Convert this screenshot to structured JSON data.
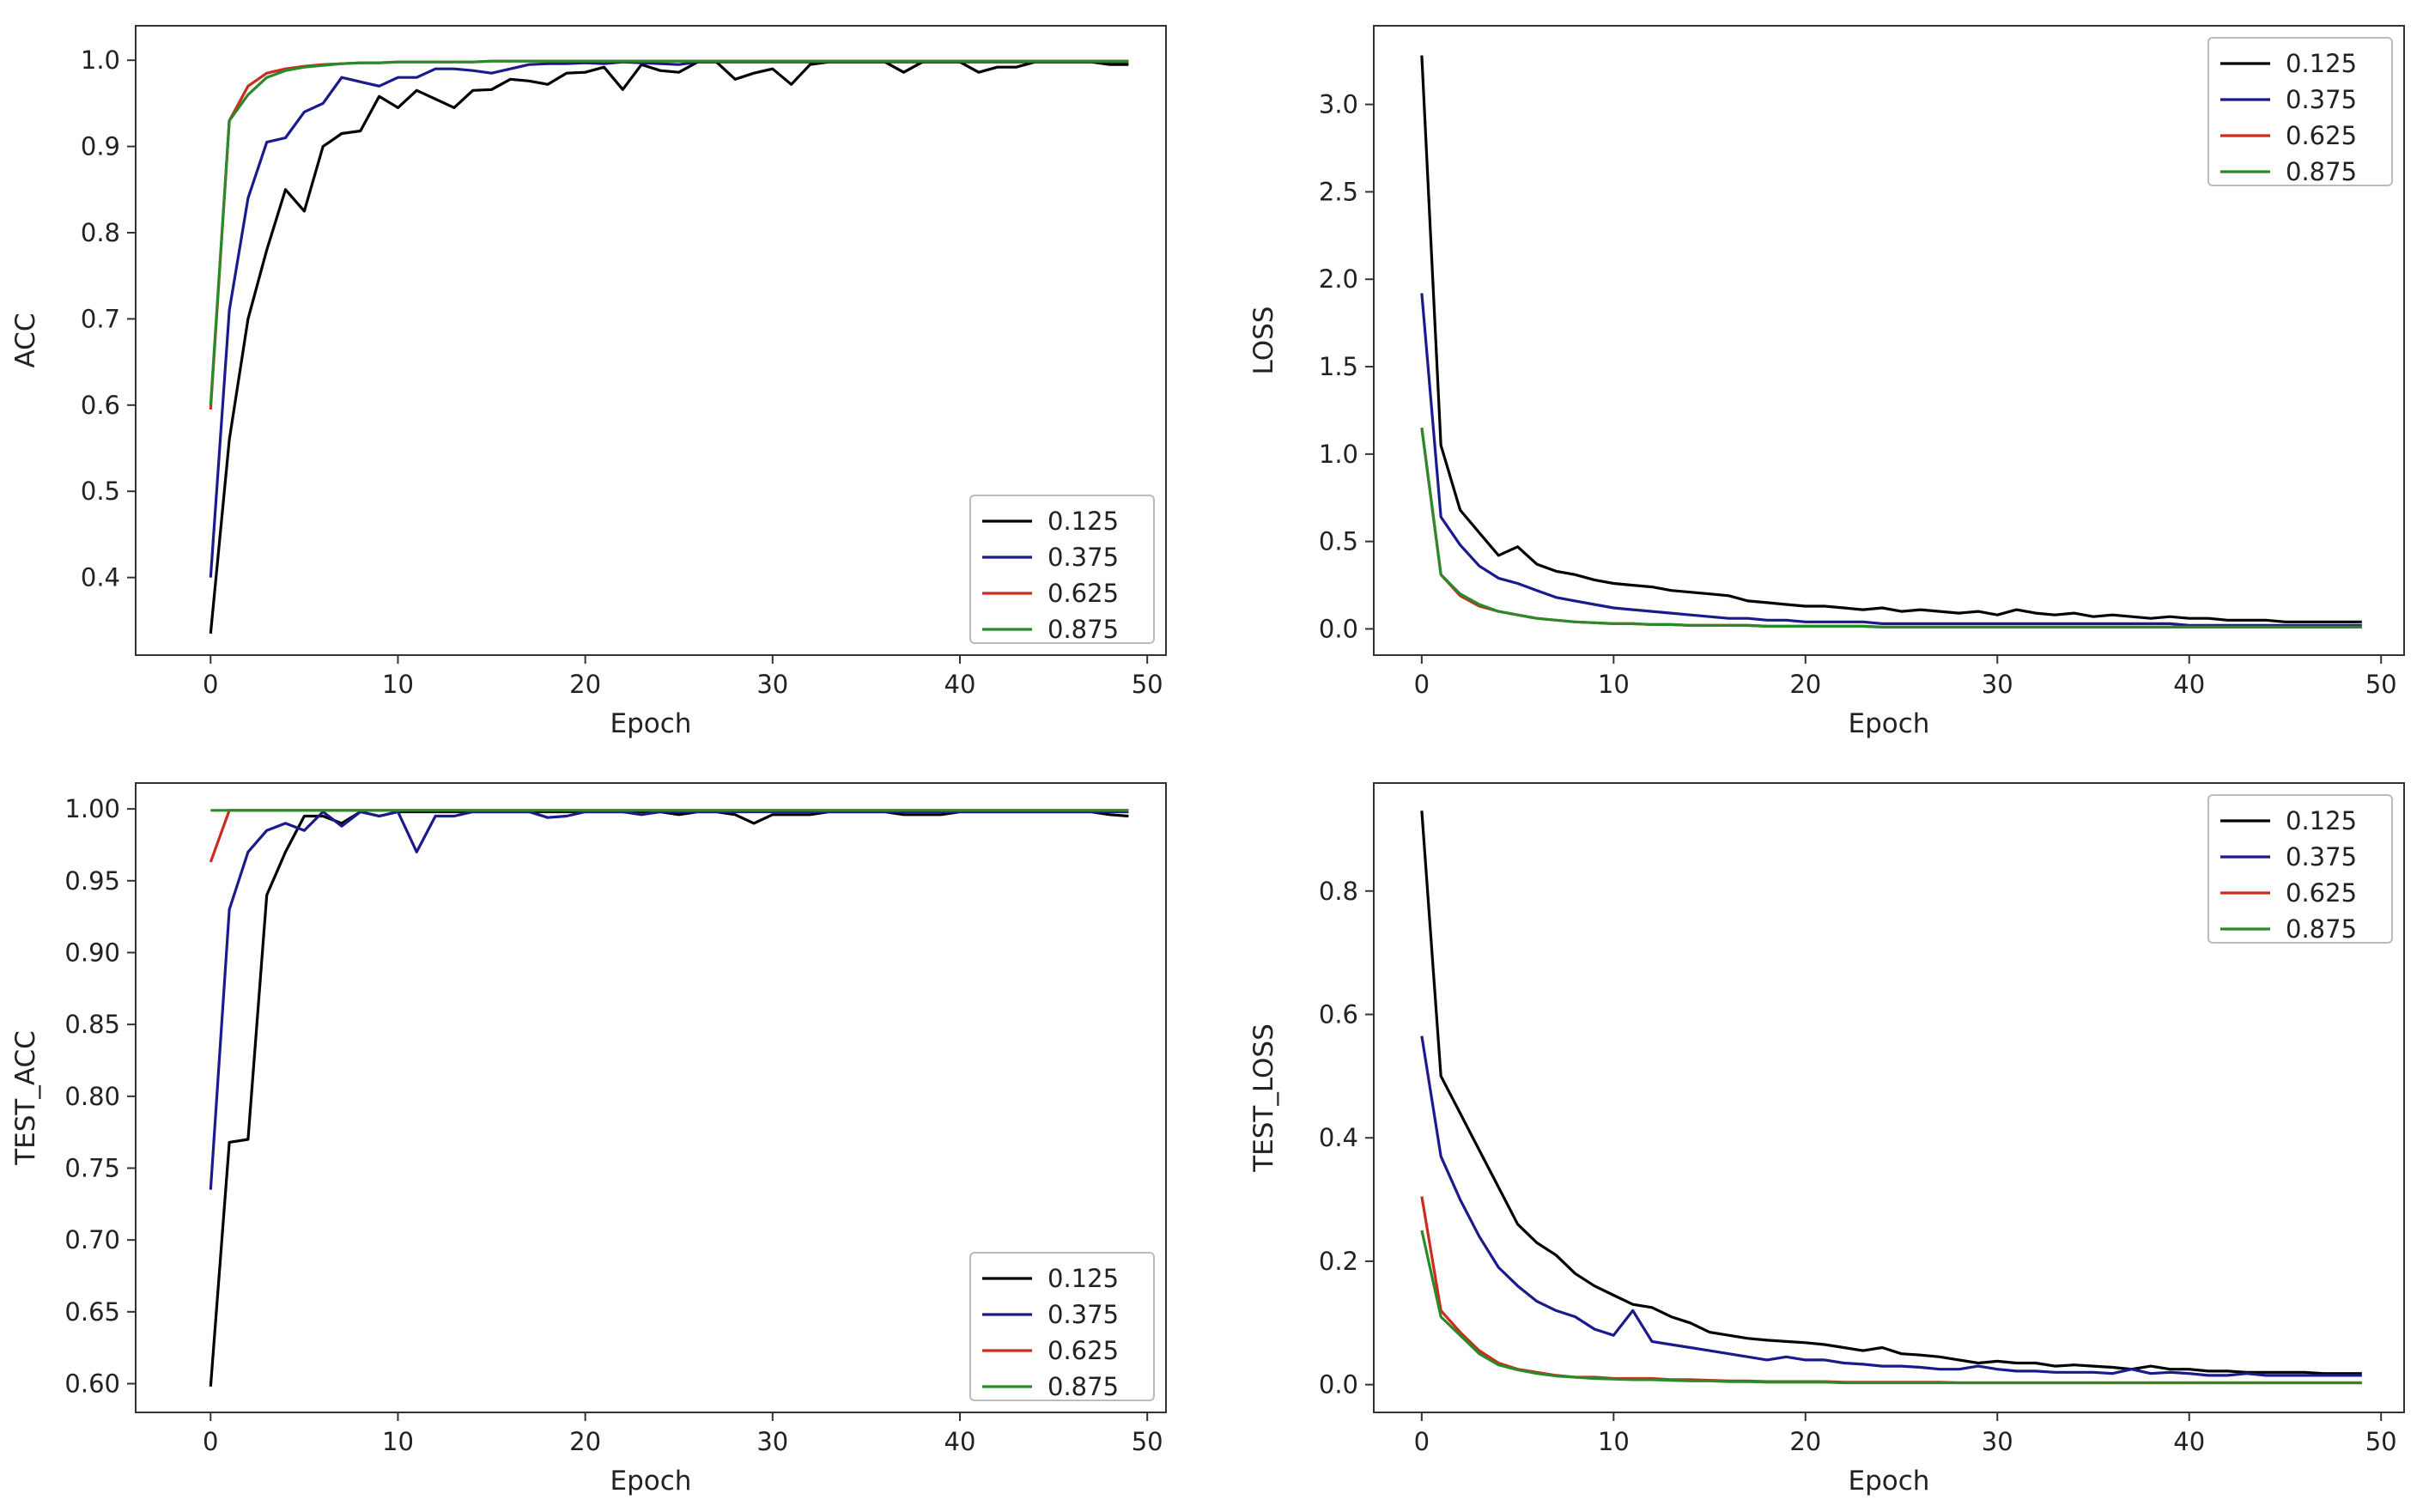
{
  "chart_data": [
    {
      "type": "line",
      "id": "acc",
      "xlabel": "Epoch",
      "ylabel": "ACC",
      "xlim": [
        -4,
        51
      ],
      "ylim": [
        0.31,
        1.04
      ],
      "xticks": [
        0,
        10,
        20,
        30,
        40,
        50
      ],
      "yticks": [
        0.4,
        0.5,
        0.6,
        0.7,
        0.8,
        0.9,
        1.0
      ],
      "ytick_labels": [
        "0.4",
        "0.5",
        "0.6",
        "0.7",
        "0.8",
        "0.9",
        "1.0"
      ],
      "legend_position": "lower-right",
      "series": [
        {
          "name": "0.125",
          "color": "#000000",
          "values": [
            0.335,
            0.56,
            0.7,
            0.78,
            0.85,
            0.825,
            0.9,
            0.915,
            0.918,
            0.958,
            0.945,
            0.965,
            0.955,
            0.945,
            0.965,
            0.966,
            0.978,
            0.976,
            0.972,
            0.985,
            0.986,
            0.992,
            0.966,
            0.995,
            0.988,
            0.986,
            0.998,
            0.998,
            0.978,
            0.985,
            0.99,
            0.972,
            0.995,
            0.998,
            0.998,
            0.998,
            0.998,
            0.986,
            0.998,
            0.998,
            0.998,
            0.986,
            0.992,
            0.992,
            0.998,
            0.998,
            0.998,
            0.998,
            0.995,
            0.995
          ]
        },
        {
          "name": "0.375",
          "color": "#1a1a8c",
          "values": [
            0.4,
            0.71,
            0.84,
            0.905,
            0.91,
            0.94,
            0.95,
            0.98,
            0.975,
            0.97,
            0.98,
            0.98,
            0.99,
            0.99,
            0.988,
            0.985,
            0.99,
            0.995,
            0.996,
            0.996,
            0.997,
            0.996,
            0.998,
            0.997,
            0.996,
            0.995,
            0.998,
            0.998,
            0.998,
            0.998,
            0.998,
            0.998,
            0.998,
            0.998,
            0.998,
            0.998,
            0.998,
            0.998,
            0.998,
            0.998,
            0.998,
            0.998,
            0.998,
            0.998,
            0.998,
            0.998,
            0.998,
            0.998,
            0.998,
            0.998
          ]
        },
        {
          "name": "0.625",
          "color": "#cc2b1d",
          "values": [
            0.595,
            0.93,
            0.97,
            0.985,
            0.99,
            0.993,
            0.995,
            0.996,
            0.997,
            0.997,
            0.998,
            0.998,
            0.998,
            0.998,
            0.998,
            0.999,
            0.999,
            0.999,
            0.999,
            0.999,
            0.999,
            0.999,
            0.999,
            0.999,
            0.999,
            0.999,
            0.999,
            0.999,
            0.999,
            0.999,
            0.999,
            0.999,
            0.999,
            0.999,
            0.999,
            0.999,
            0.999,
            0.999,
            0.999,
            0.999,
            0.999,
            0.999,
            0.999,
            0.999,
            0.999,
            0.999,
            0.999,
            0.999,
            0.999,
            0.999
          ]
        },
        {
          "name": "0.875",
          "color": "#2a8a2a",
          "values": [
            0.6,
            0.93,
            0.96,
            0.98,
            0.988,
            0.992,
            0.994,
            0.996,
            0.997,
            0.997,
            0.998,
            0.998,
            0.998,
            0.998,
            0.998,
            0.999,
            0.999,
            0.999,
            0.999,
            0.999,
            0.999,
            0.999,
            0.999,
            0.999,
            0.999,
            0.999,
            0.999,
            0.999,
            0.999,
            0.999,
            0.999,
            0.999,
            0.999,
            0.999,
            0.999,
            0.999,
            0.999,
            0.999,
            0.999,
            0.999,
            0.999,
            0.999,
            0.999,
            0.999,
            0.999,
            0.999,
            0.999,
            0.999,
            0.999,
            0.999
          ]
        }
      ]
    },
    {
      "type": "line",
      "id": "loss",
      "xlabel": "Epoch",
      "ylabel": "LOSS",
      "xlim": [
        -2.5,
        51.2
      ],
      "ylim": [
        -0.15,
        3.45
      ],
      "xticks": [
        0,
        10,
        20,
        30,
        40,
        50
      ],
      "yticks": [
        0.0,
        0.5,
        1.0,
        1.5,
        2.0,
        2.5,
        3.0
      ],
      "ytick_labels": [
        "0.0",
        "0.5",
        "1.0",
        "1.5",
        "2.0",
        "2.5",
        "3.0"
      ],
      "legend_position": "upper-right",
      "series": [
        {
          "name": "0.125",
          "color": "#000000",
          "values": [
            3.28,
            1.05,
            0.68,
            0.55,
            0.42,
            0.47,
            0.37,
            0.33,
            0.31,
            0.28,
            0.26,
            0.25,
            0.24,
            0.22,
            0.21,
            0.2,
            0.19,
            0.16,
            0.15,
            0.14,
            0.13,
            0.13,
            0.12,
            0.11,
            0.12,
            0.1,
            0.11,
            0.1,
            0.09,
            0.1,
            0.08,
            0.11,
            0.09,
            0.08,
            0.09,
            0.07,
            0.08,
            0.07,
            0.06,
            0.07,
            0.06,
            0.06,
            0.05,
            0.05,
            0.05,
            0.04,
            0.04,
            0.04,
            0.04,
            0.04
          ]
        },
        {
          "name": "0.375",
          "color": "#1a1a8c",
          "values": [
            1.92,
            0.64,
            0.48,
            0.36,
            0.29,
            0.26,
            0.22,
            0.18,
            0.16,
            0.14,
            0.12,
            0.11,
            0.1,
            0.09,
            0.08,
            0.07,
            0.06,
            0.06,
            0.05,
            0.05,
            0.04,
            0.04,
            0.04,
            0.04,
            0.03,
            0.03,
            0.03,
            0.03,
            0.03,
            0.03,
            0.03,
            0.03,
            0.03,
            0.03,
            0.03,
            0.03,
            0.03,
            0.03,
            0.03,
            0.03,
            0.02,
            0.02,
            0.02,
            0.02,
            0.02,
            0.02,
            0.02,
            0.02,
            0.02,
            0.02
          ]
        },
        {
          "name": "0.625",
          "color": "#cc2b1d",
          "values": [
            1.15,
            0.31,
            0.19,
            0.13,
            0.1,
            0.08,
            0.06,
            0.05,
            0.04,
            0.035,
            0.03,
            0.03,
            0.025,
            0.025,
            0.02,
            0.02,
            0.02,
            0.02,
            0.015,
            0.015,
            0.015,
            0.015,
            0.015,
            0.015,
            0.01,
            0.01,
            0.01,
            0.01,
            0.01,
            0.01,
            0.01,
            0.01,
            0.01,
            0.01,
            0.01,
            0.01,
            0.01,
            0.01,
            0.01,
            0.01,
            0.01,
            0.01,
            0.01,
            0.01,
            0.01,
            0.01,
            0.01,
            0.01,
            0.01,
            0.01
          ]
        },
        {
          "name": "0.875",
          "color": "#2a8a2a",
          "values": [
            1.15,
            0.31,
            0.2,
            0.14,
            0.1,
            0.08,
            0.06,
            0.05,
            0.04,
            0.035,
            0.03,
            0.03,
            0.025,
            0.025,
            0.02,
            0.02,
            0.02,
            0.02,
            0.015,
            0.015,
            0.015,
            0.015,
            0.015,
            0.015,
            0.01,
            0.01,
            0.01,
            0.01,
            0.01,
            0.01,
            0.01,
            0.01,
            0.01,
            0.01,
            0.01,
            0.01,
            0.01,
            0.01,
            0.01,
            0.01,
            0.01,
            0.01,
            0.01,
            0.01,
            0.01,
            0.01,
            0.01,
            0.01,
            0.01,
            0.01
          ]
        }
      ]
    },
    {
      "type": "line",
      "id": "test_acc",
      "xlabel": "Epoch",
      "ylabel": "TEST_ACC",
      "xlim": [
        -4,
        51
      ],
      "ylim": [
        0.58,
        1.018
      ],
      "xticks": [
        0,
        10,
        20,
        30,
        40,
        50
      ],
      "yticks": [
        0.6,
        0.65,
        0.7,
        0.75,
        0.8,
        0.85,
        0.9,
        0.95,
        1.0
      ],
      "ytick_labels": [
        "0.60",
        "0.65",
        "0.70",
        "0.75",
        "0.80",
        "0.85",
        "0.90",
        "0.95",
        "1.00"
      ],
      "legend_position": "lower-right",
      "series": [
        {
          "name": "0.125",
          "color": "#000000",
          "values": [
            0.598,
            0.768,
            0.77,
            0.94,
            0.97,
            0.995,
            0.995,
            0.99,
            0.998,
            0.995,
            0.998,
            0.998,
            0.998,
            0.998,
            0.998,
            0.998,
            0.998,
            0.998,
            0.998,
            0.998,
            0.998,
            0.998,
            0.998,
            0.998,
            0.998,
            0.996,
            0.998,
            0.998,
            0.996,
            0.99,
            0.996,
            0.996,
            0.996,
            0.998,
            0.998,
            0.998,
            0.998,
            0.996,
            0.996,
            0.996,
            0.998,
            0.998,
            0.998,
            0.998,
            0.998,
            0.998,
            0.998,
            0.998,
            0.996,
            0.995
          ]
        },
        {
          "name": "0.375",
          "color": "#1a1a8c",
          "values": [
            0.735,
            0.93,
            0.97,
            0.985,
            0.99,
            0.985,
            0.998,
            0.988,
            0.998,
            0.995,
            0.998,
            0.97,
            0.995,
            0.995,
            0.998,
            0.998,
            0.998,
            0.998,
            0.994,
            0.995,
            0.998,
            0.998,
            0.998,
            0.996,
            0.998,
            0.998,
            0.998,
            0.998,
            0.998,
            0.998,
            0.998,
            0.998,
            0.998,
            0.998,
            0.998,
            0.998,
            0.998,
            0.998,
            0.998,
            0.998,
            0.998,
            0.998,
            0.998,
            0.998,
            0.998,
            0.998,
            0.998,
            0.998,
            0.998,
            0.998
          ]
        },
        {
          "name": "0.625",
          "color": "#cc2b1d",
          "values": [
            0.963,
            0.999,
            0.999,
            0.999,
            0.999,
            0.999,
            0.999,
            0.999,
            0.999,
            0.999,
            0.999,
            0.999,
            0.999,
            0.999,
            0.999,
            0.999,
            0.999,
            0.999,
            0.999,
            0.999,
            0.999,
            0.999,
            0.999,
            0.999,
            0.999,
            0.999,
            0.999,
            0.999,
            0.999,
            0.999,
            0.999,
            0.999,
            0.999,
            0.999,
            0.999,
            0.999,
            0.999,
            0.999,
            0.999,
            0.999,
            0.999,
            0.999,
            0.999,
            0.999,
            0.999,
            0.999,
            0.999,
            0.999,
            0.999,
            0.999
          ]
        },
        {
          "name": "0.875",
          "color": "#2a8a2a",
          "values": [
            0.999,
            0.999,
            0.999,
            0.999,
            0.999,
            0.999,
            0.999,
            0.999,
            0.999,
            0.999,
            0.999,
            0.999,
            0.999,
            0.999,
            0.999,
            0.999,
            0.999,
            0.999,
            0.999,
            0.999,
            0.999,
            0.999,
            0.999,
            0.999,
            0.999,
            0.999,
            0.999,
            0.999,
            0.999,
            0.999,
            0.999,
            0.999,
            0.999,
            0.999,
            0.999,
            0.999,
            0.999,
            0.999,
            0.999,
            0.999,
            0.999,
            0.999,
            0.999,
            0.999,
            0.999,
            0.999,
            0.999,
            0.999,
            0.999,
            0.999
          ]
        }
      ]
    },
    {
      "type": "line",
      "id": "test_loss",
      "xlabel": "Epoch",
      "ylabel": "TEST_LOSS",
      "xlim": [
        -2.5,
        51.2
      ],
      "ylim": [
        -0.045,
        0.975
      ],
      "xticks": [
        0,
        10,
        20,
        30,
        40,
        50
      ],
      "yticks": [
        0.0,
        0.2,
        0.4,
        0.6,
        0.8
      ],
      "ytick_labels": [
        "0.0",
        "0.2",
        "0.4",
        "0.6",
        "0.8"
      ],
      "legend_position": "upper-right",
      "series": [
        {
          "name": "0.125",
          "color": "#000000",
          "values": [
            0.93,
            0.5,
            0.44,
            0.38,
            0.32,
            0.26,
            0.23,
            0.21,
            0.18,
            0.16,
            0.145,
            0.13,
            0.125,
            0.11,
            0.1,
            0.085,
            0.08,
            0.075,
            0.072,
            0.07,
            0.068,
            0.065,
            0.06,
            0.055,
            0.06,
            0.05,
            0.048,
            0.045,
            0.04,
            0.035,
            0.038,
            0.035,
            0.035,
            0.03,
            0.032,
            0.03,
            0.028,
            0.025,
            0.03,
            0.025,
            0.025,
            0.022,
            0.022,
            0.02,
            0.02,
            0.02,
            0.02,
            0.018,
            0.018,
            0.018
          ]
        },
        {
          "name": "0.375",
          "color": "#1a1a8c",
          "values": [
            0.565,
            0.37,
            0.3,
            0.24,
            0.19,
            0.16,
            0.135,
            0.12,
            0.11,
            0.09,
            0.08,
            0.12,
            0.07,
            0.065,
            0.06,
            0.055,
            0.05,
            0.045,
            0.04,
            0.045,
            0.04,
            0.04,
            0.035,
            0.033,
            0.03,
            0.03,
            0.028,
            0.025,
            0.025,
            0.03,
            0.025,
            0.022,
            0.022,
            0.02,
            0.02,
            0.02,
            0.018,
            0.025,
            0.018,
            0.02,
            0.018,
            0.015,
            0.015,
            0.018,
            0.015,
            0.015,
            0.015,
            0.015,
            0.015,
            0.015
          ]
        },
        {
          "name": "0.625",
          "color": "#cc2b1d",
          "values": [
            0.305,
            0.12,
            0.085,
            0.055,
            0.035,
            0.025,
            0.02,
            0.015,
            0.012,
            0.012,
            0.01,
            0.01,
            0.01,
            0.008,
            0.008,
            0.007,
            0.006,
            0.006,
            0.005,
            0.005,
            0.005,
            0.005,
            0.004,
            0.004,
            0.004,
            0.004,
            0.004,
            0.004,
            0.003,
            0.003,
            0.003,
            0.003,
            0.003,
            0.003,
            0.003,
            0.003,
            0.003,
            0.003,
            0.003,
            0.003,
            0.003,
            0.003,
            0.003,
            0.003,
            0.003,
            0.003,
            0.003,
            0.003,
            0.003,
            0.003
          ]
        },
        {
          "name": "0.875",
          "color": "#2a8a2a",
          "values": [
            0.25,
            0.11,
            0.08,
            0.05,
            0.032,
            0.024,
            0.018,
            0.014,
            0.012,
            0.01,
            0.009,
            0.008,
            0.008,
            0.007,
            0.006,
            0.006,
            0.005,
            0.005,
            0.004,
            0.004,
            0.004,
            0.004,
            0.003,
            0.003,
            0.003,
            0.003,
            0.003,
            0.003,
            0.003,
            0.003,
            0.003,
            0.003,
            0.003,
            0.003,
            0.003,
            0.003,
            0.003,
            0.003,
            0.003,
            0.003,
            0.003,
            0.003,
            0.003,
            0.003,
            0.003,
            0.003,
            0.003,
            0.003,
            0.003,
            0.003
          ]
        }
      ]
    }
  ]
}
